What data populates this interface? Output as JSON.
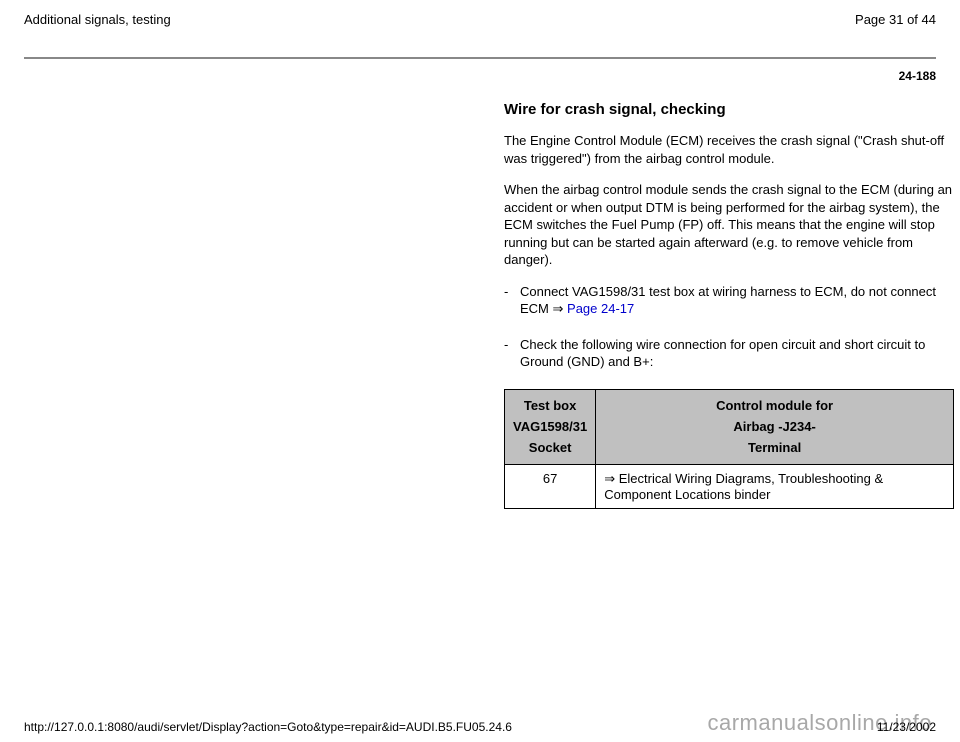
{
  "header": {
    "left": "Additional signals, testing",
    "right": "Page 31 of 44"
  },
  "page_code": "24-188",
  "section_title": "Wire for crash signal, checking",
  "para1": "The Engine Control Module (ECM) receives the crash signal (\"Crash shut-off was triggered\") from the airbag control module.",
  "para2": "When the airbag control module sends the crash signal to the ECM (during an accident or when output DTM is being performed for the airbag system), the ECM switches the Fuel Pump (FP) off. This means that the engine will stop running but can be started again afterward (e.g. to remove vehicle from danger).",
  "bullet1_prefix": "Connect VAG1598/31 test box at wiring harness to ECM, do not connect ECM ",
  "bullet1_arrow": "⇒",
  "bullet1_link": " Page 24-17",
  "bullet2": "Check the following wire connection for open circuit and short circuit to Ground (GND) and B+:",
  "table": {
    "header_col1_line1": "Test box",
    "header_col1_line2": "VAG1598/31",
    "header_col1_line3": "Socket",
    "header_col2_line1": "Control module for",
    "header_col2_line2": "Airbag -J234-",
    "header_col2_line3": "Terminal",
    "row1_col1": "67",
    "row1_col2_arrow": "⇒",
    "row1_col2_text": " Electrical Wiring Diagrams, Troubleshooting & Component Locations binder"
  },
  "footer": {
    "left": "http://127.0.0.1:8080/audi/servlet/Display?action=Goto&type=repair&id=AUDI.B5.FU05.24.6",
    "right": "11/23/2002"
  },
  "watermark": "carmanualsonline.info",
  "colors": {
    "link": "#0000cc",
    "table_header_bg": "#c0c0c0",
    "hr": "#888888",
    "watermark": "#a8a8a8"
  }
}
